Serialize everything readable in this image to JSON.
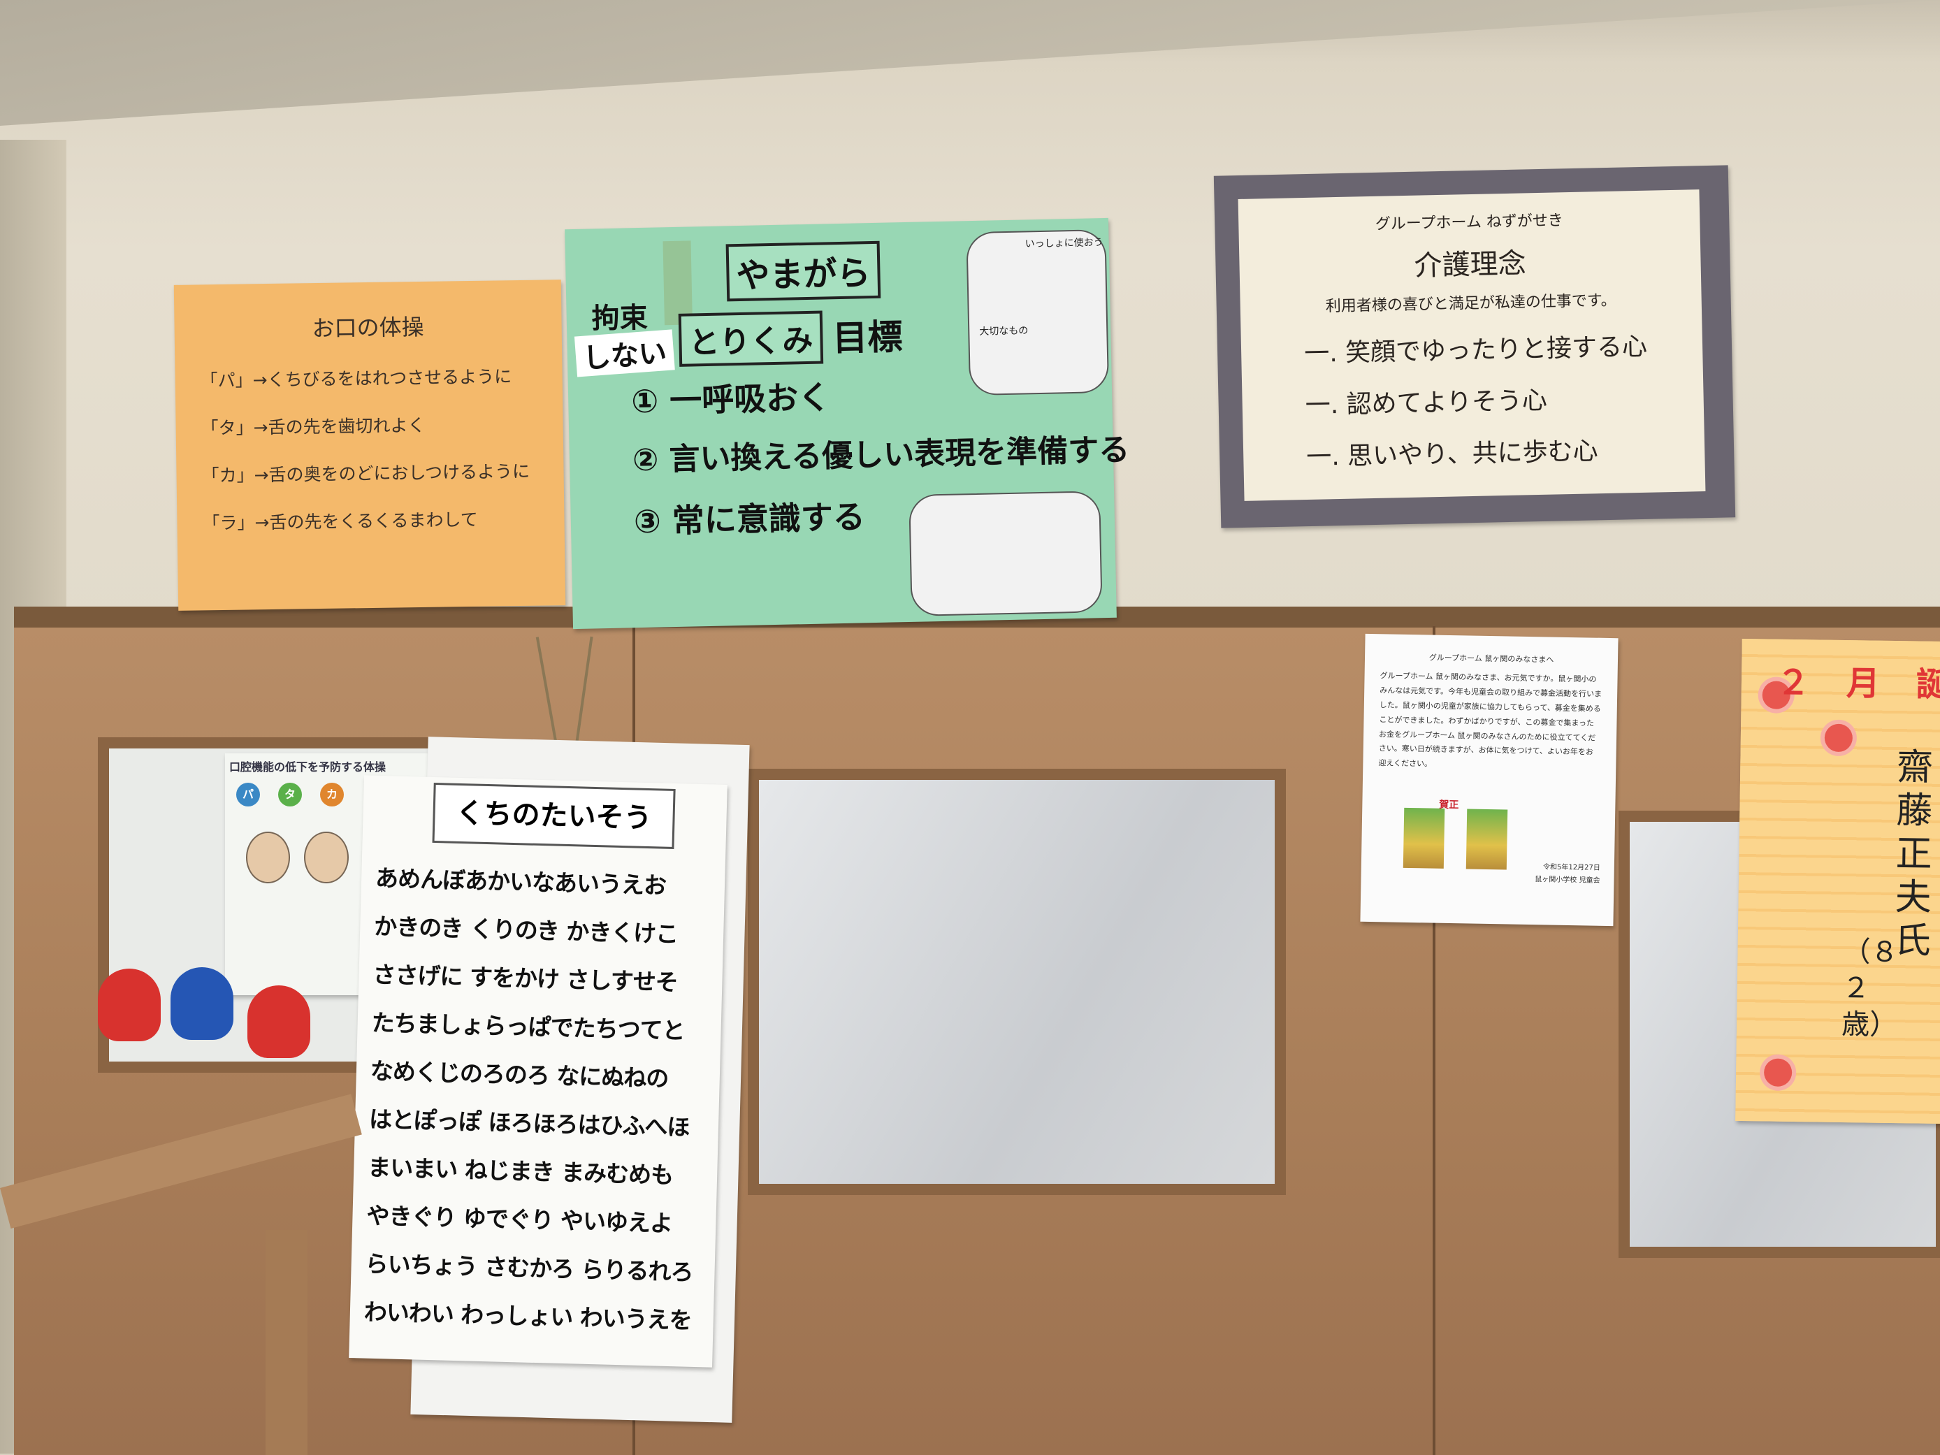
{
  "orange_poster": {
    "title": "お口の体操",
    "lines": [
      "「パ」→くちびるをはれつさせるように",
      "「タ」→舌の先を歯切れよく",
      "「カ」→舌の奥をのどにおしつけるように",
      "「ラ」→舌の先をくるくるまわして"
    ]
  },
  "green_poster": {
    "header": "やまがら",
    "left_label": "拘束",
    "shinai": "しない",
    "torikumi": "とりくみ",
    "mokuhyo": "目標",
    "items": [
      "① 一呼吸おく",
      "② 言い換える優しい表現を準備する",
      "③ 常に意識する"
    ],
    "bubble1": "いっしょに使おう",
    "bubble2": "大切なもの"
  },
  "philosophy": {
    "org": "グループホーム ねずがせき",
    "title": "介護理念",
    "subtitle": "利用者様の喜びと満足が私達の仕事です。",
    "items": [
      "一. 笑顔でゆったりと接する心",
      "一. 認めてよりそう心",
      "一. 思いやり、共に歩む心"
    ]
  },
  "notice": {
    "heading": "グループホーム 鼠ヶ関のみなさまへ",
    "body": "グループホーム 鼠ヶ関のみなさま、お元気ですか。鼠ヶ関小のみんなは元気です。今年も児童会の取り組みで募金活動を行いました。鼠ヶ関小の児童が家族に協力してもらって、募金を集めることができました。わずかばかりですが、この募金で集まったお金をグループホーム 鼠ヶ関のみなさんのために役立ててください。寒い日が続きますが、お体に気をつけて、よいお年をお迎えください。",
    "sign_date": "令和5年12月27日",
    "sign_name": "鼠ヶ関小学校 児童会",
    "stamp": "賀正"
  },
  "birthday": {
    "month": "２",
    "month_suffix": "月",
    "cut": "誕",
    "name": "齋藤正夫氏",
    "age": "（８２歳）"
  },
  "kuchi_chart": {
    "title": "くちのたいそう",
    "lines": [
      "あめんぼあかいなあいうえお",
      "かきのき くりのき かきくけこ",
      "ささげに すをかけ さしすせそ",
      "たちましょらっぱでたちつてと",
      "なめくじのろのろ なにぬねの",
      "はとぽっぽ ほろほろはひふへほ",
      "まいまい ねじまき まみむめも",
      "やきぐり ゆでぐり やいゆえよ",
      "らいちょう さむかろ らりるれろ",
      "わいわい わっしょい わいうえを"
    ]
  },
  "window_poster": {
    "title": "口腔機能の低下を予防する体操",
    "syllables": [
      "パ",
      "タ",
      "カ"
    ]
  },
  "colors": {
    "orange": "#f4b96b",
    "green": "#98d7b4",
    "frame": "#6a6570",
    "wood": "#a87d58"
  }
}
